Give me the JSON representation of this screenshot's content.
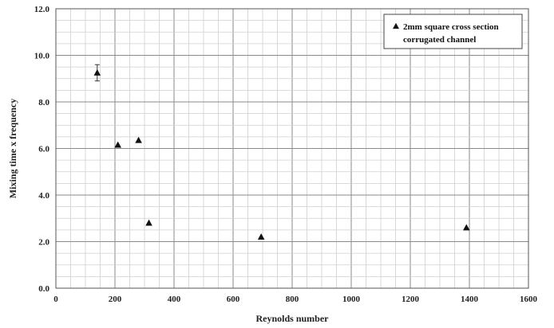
{
  "chart_data": {
    "type": "scatter",
    "xlabel": "Reynolds number",
    "ylabel": "Mixing time x frequency",
    "xlim": [
      0,
      1600
    ],
    "ylim": [
      0,
      12
    ],
    "x_ticks": [
      "0",
      "200",
      "400",
      "600",
      "800",
      "1000",
      "1200",
      "1400",
      "1600"
    ],
    "y_ticks": [
      "0.0",
      "2.0",
      "4.0",
      "6.0",
      "8.0",
      "10.0",
      "12.0"
    ],
    "grid": true,
    "legend_position": "top-right",
    "series": [
      {
        "name": "2mm square cross section corrugated channel",
        "legend_lines": [
          "2mm square cross section",
          "corrugated channel"
        ],
        "marker": "triangle",
        "color": "#111111",
        "points": [
          {
            "x": 140,
            "y": 9.25,
            "err": 0.35
          },
          {
            "x": 210,
            "y": 6.15
          },
          {
            "x": 280,
            "y": 6.35
          },
          {
            "x": 315,
            "y": 2.8
          },
          {
            "x": 695,
            "y": 2.2
          },
          {
            "x": 1390,
            "y": 2.6
          }
        ]
      }
    ]
  }
}
